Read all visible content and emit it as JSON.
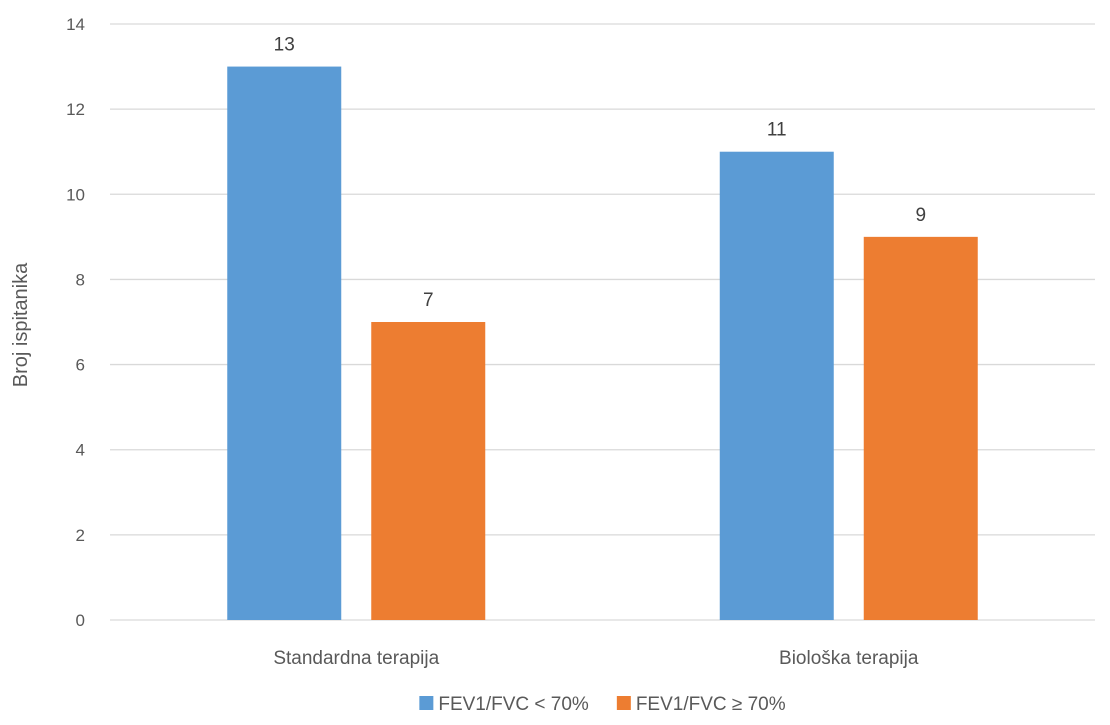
{
  "chart_data": {
    "type": "bar",
    "title": "",
    "xlabel": "",
    "ylabel": "Broj ispitanika",
    "categories": [
      "Standardna terapija",
      "Biološka terapija"
    ],
    "series": [
      {
        "name": "FEV1/FVC < 70%",
        "values": [
          13,
          11
        ],
        "color": "#5B9BD5"
      },
      {
        "name": "FEV1/FVC ≥ 70%",
        "values": [
          7,
          9
        ],
        "color": "#ED7D31"
      }
    ],
    "ylim": [
      0,
      14
    ],
    "yticks": [
      0,
      2,
      4,
      6,
      8,
      10,
      12,
      14
    ],
    "grid": true,
    "data_labels": true,
    "legend_position": "bottom",
    "gridline_color": "#D9D9D9"
  }
}
